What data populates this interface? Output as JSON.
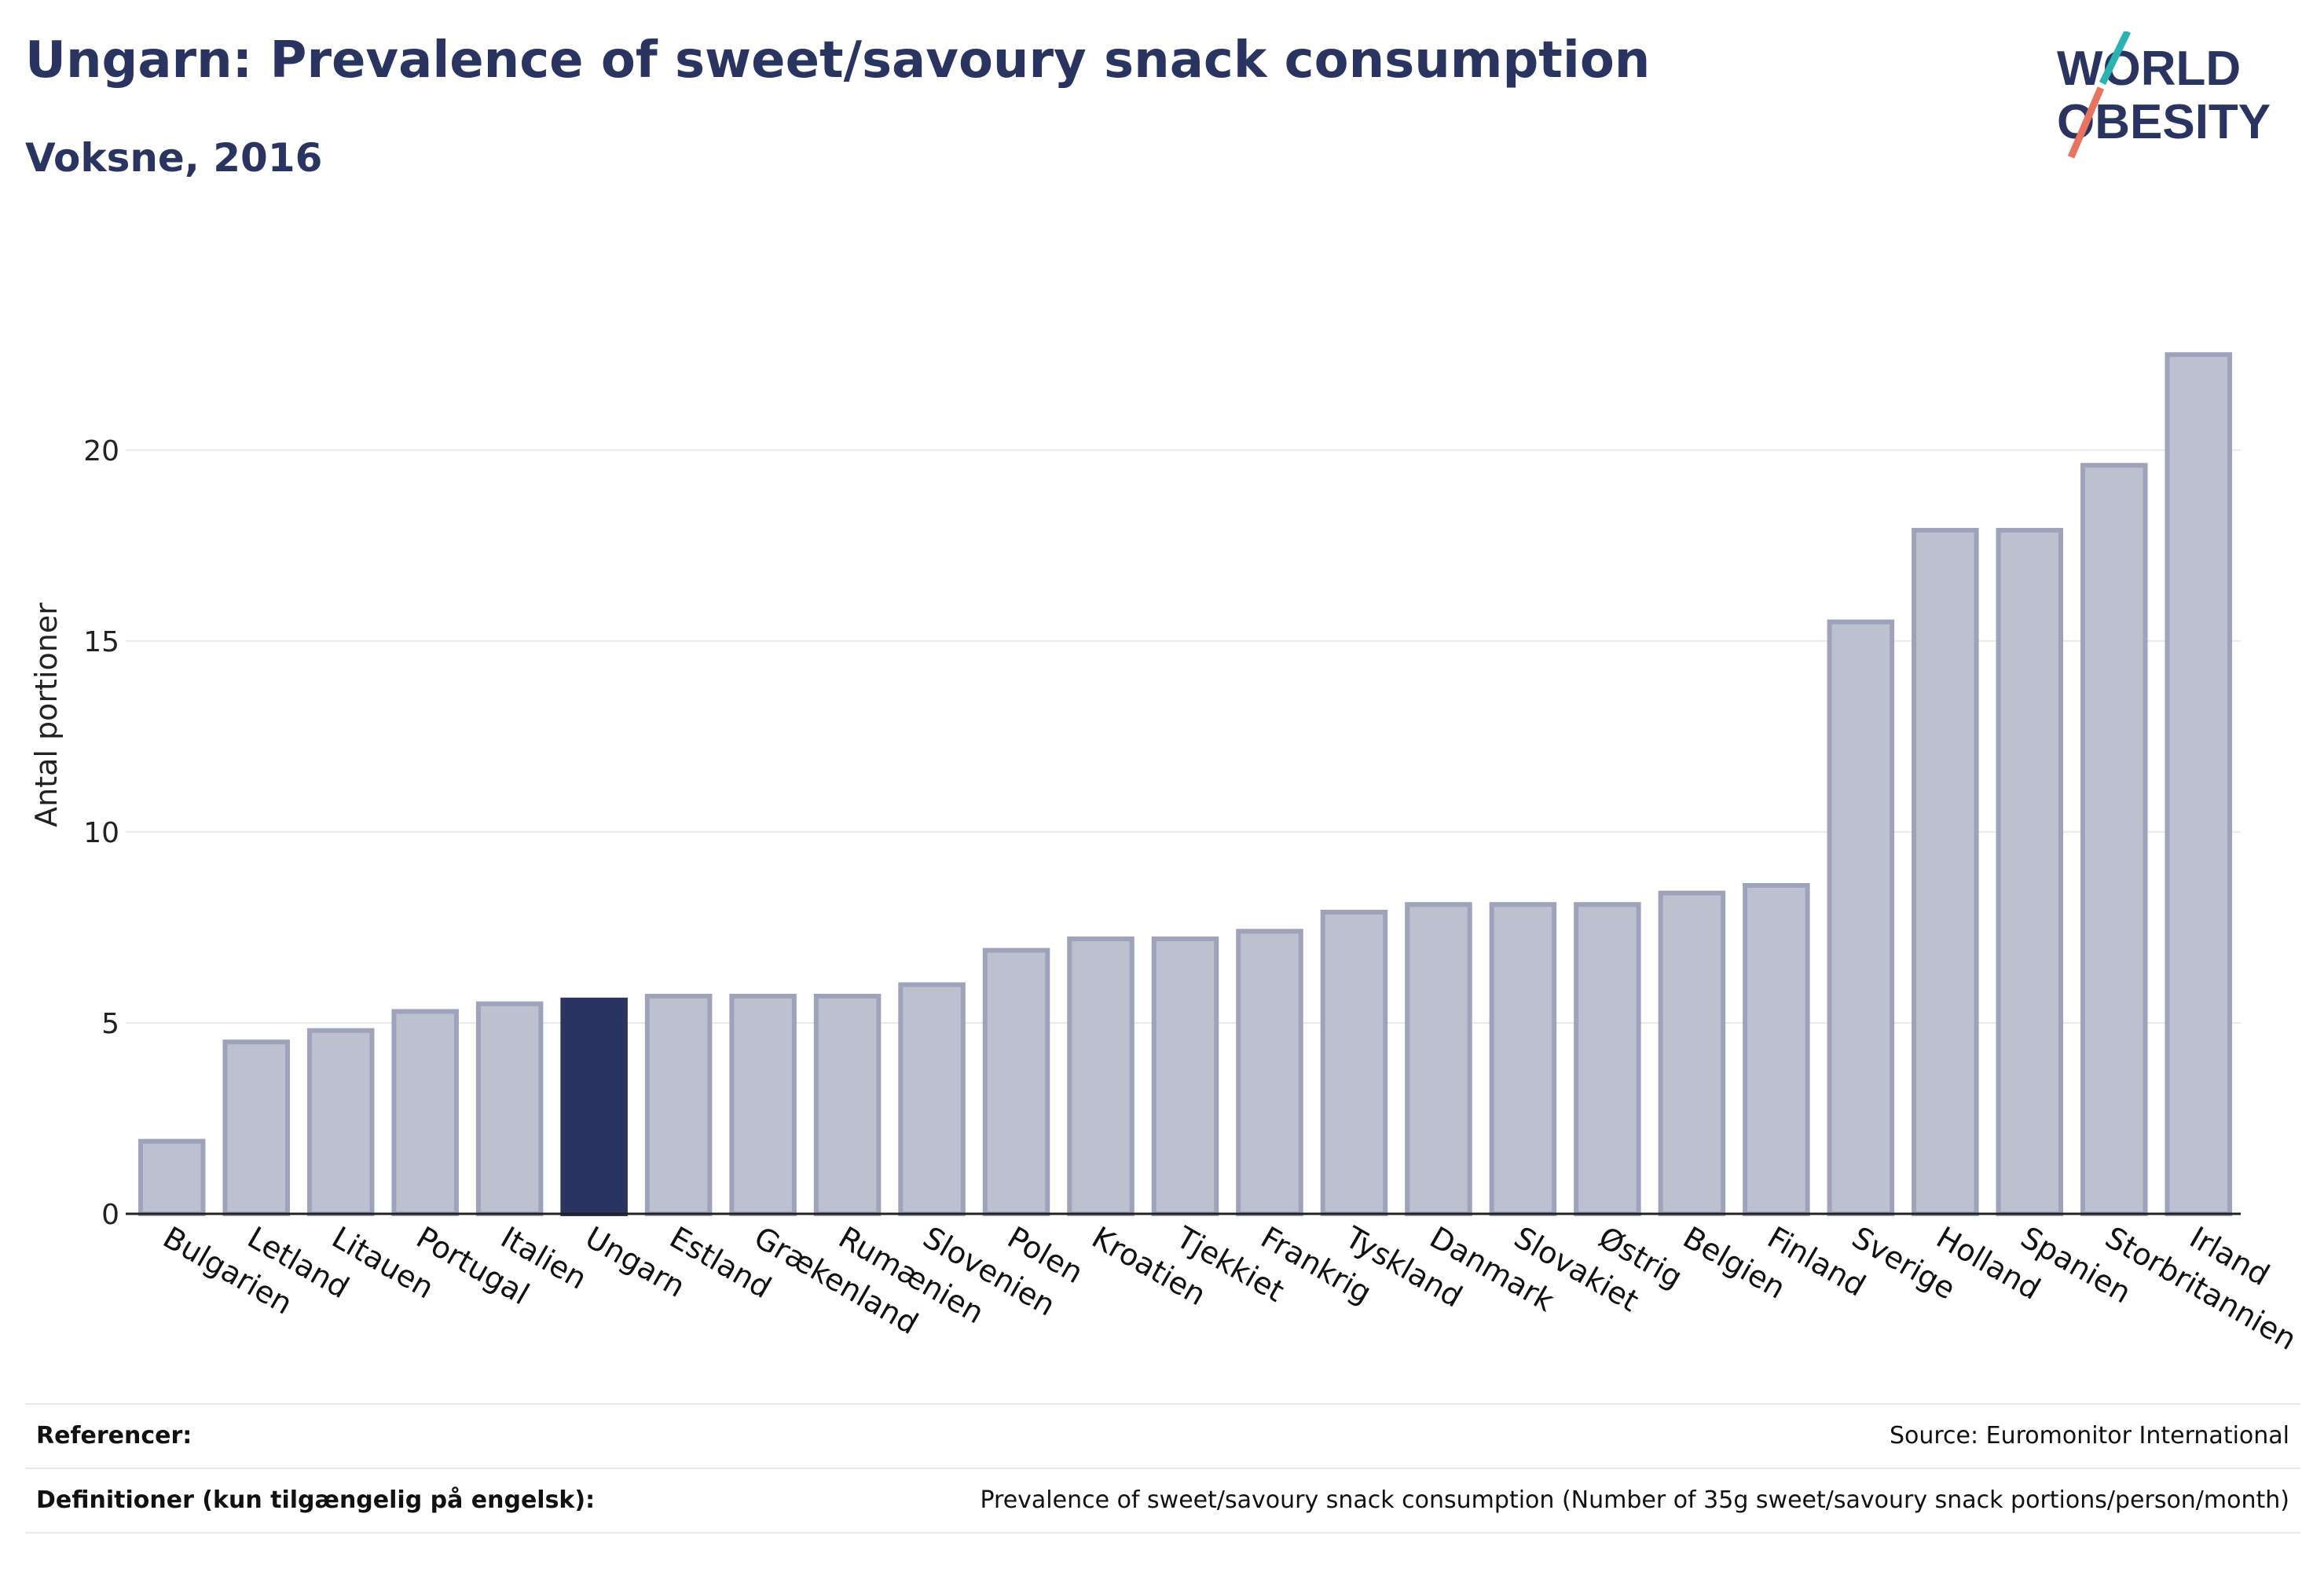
{
  "header": {
    "title": "Ungarn: Prevalence of sweet/savoury snack consumption",
    "subtitle": "Voksne, 2016"
  },
  "logo": {
    "line1": "WORLD",
    "line2": "OBESITY",
    "colors": {
      "text": "#2a3461",
      "slash_teal": "#2bb3b1",
      "slash_coral": "#e8735f"
    }
  },
  "colors": {
    "bar": "#bcc0cf",
    "bar_border": "#9ea3bb",
    "highlight": "#2a3461",
    "grid": "#e8e9ef",
    "axis": "#222222"
  },
  "chart_data": {
    "type": "bar",
    "title": "Ungarn: Prevalence of sweet/savoury snack consumption",
    "subtitle": "Voksne, 2016",
    "xlabel": "",
    "ylabel": "Antal portioner",
    "ylim": [
      0,
      23
    ],
    "yticks": [
      0,
      5,
      10,
      15,
      20
    ],
    "grid": true,
    "highlight": "Ungarn",
    "categories": [
      "Bulgarien",
      "Letland",
      "Litauen",
      "Portugal",
      "Italien",
      "Ungarn",
      "Estland",
      "Grækenland",
      "Rumænien",
      "Slovenien",
      "Polen",
      "Kroatien",
      "Tjekkiet",
      "Frankrig",
      "Tyskland",
      "Danmark",
      "Slovakiet",
      "Østrig",
      "Belgien",
      "Finland",
      "Sverige",
      "Holland",
      "Spanien",
      "Storbritannien",
      "Irland"
    ],
    "values": [
      1.9,
      4.5,
      4.8,
      5.3,
      5.5,
      5.6,
      5.7,
      5.7,
      5.7,
      6.0,
      6.9,
      7.2,
      7.2,
      7.4,
      7.9,
      8.1,
      8.1,
      8.1,
      8.4,
      8.6,
      15.5,
      17.9,
      17.9,
      19.6,
      22.5
    ]
  },
  "footer": {
    "references_label": "Referencer:",
    "references_value": "Source: Euromonitor International",
    "definitions_label": "Definitioner (kun tilgængelig på engelsk):",
    "definitions_value": "Prevalence of sweet/savoury snack consumption (Number of 35g sweet/savoury snack portions/person/month)"
  }
}
